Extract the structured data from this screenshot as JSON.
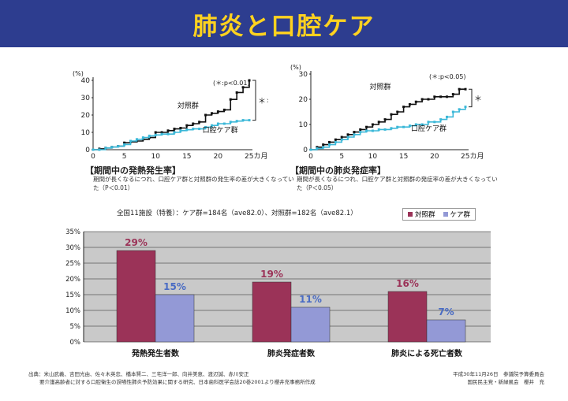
{
  "title": "肺炎と口腔ケア",
  "chart_data": [
    {
      "type": "line",
      "title": "【期間中の発熱発生率】",
      "caption": "期間が長くなるにつれ、口腔ケア群と対照群の発生率の差が大きくなっていた（P＜0.01）",
      "ylabel": "(%)",
      "ylim": [
        0,
        40
      ],
      "yticks": [
        "0",
        "10",
        "20",
        "30",
        "40"
      ],
      "xlim": [
        0,
        25
      ],
      "xticks": [
        "0",
        "5",
        "10",
        "15",
        "20",
        "25カ月"
      ],
      "significance_note": "(＊:p<0.01)",
      "significance_mark": "＊＊",
      "series": [
        {
          "name": "対照群",
          "color": "#111111",
          "points": [
            [
              0,
              0
            ],
            [
              1,
              0.5
            ],
            [
              2,
              1
            ],
            [
              3,
              1.5
            ],
            [
              4,
              2
            ],
            [
              5,
              4
            ],
            [
              6,
              4.5
            ],
            [
              7,
              5
            ],
            [
              8,
              6
            ],
            [
              9,
              7
            ],
            [
              10,
              10
            ],
            [
              11,
              10
            ],
            [
              12,
              11
            ],
            [
              13,
              12
            ],
            [
              14,
              12.5
            ],
            [
              15,
              14
            ],
            [
              16,
              15
            ],
            [
              17,
              16
            ],
            [
              18,
              20
            ],
            [
              19,
              21
            ],
            [
              20,
              22
            ],
            [
              21,
              23
            ],
            [
              22,
              29
            ],
            [
              23,
              33
            ],
            [
              24,
              36
            ],
            [
              25,
              40
            ]
          ]
        },
        {
          "name": "口腔ケア群",
          "color": "#3bb8d8",
          "points": [
            [
              0,
              0
            ],
            [
              1,
              0
            ],
            [
              2,
              1
            ],
            [
              3,
              1.5
            ],
            [
              4,
              2
            ],
            [
              5,
              3
            ],
            [
              6,
              5
            ],
            [
              7,
              6
            ],
            [
              8,
              7
            ],
            [
              9,
              8
            ],
            [
              10,
              8.5
            ],
            [
              11,
              9
            ],
            [
              12,
              9
            ],
            [
              13,
              10
            ],
            [
              14,
              11
            ],
            [
              15,
              11.5
            ],
            [
              16,
              12
            ],
            [
              17,
              12
            ],
            [
              18,
              13
            ],
            [
              19,
              14
            ],
            [
              20,
              15
            ],
            [
              21,
              15
            ],
            [
              22,
              16
            ],
            [
              23,
              16.5
            ],
            [
              24,
              17
            ],
            [
              25,
              17
            ]
          ]
        }
      ]
    },
    {
      "type": "line",
      "title": "【期間中の肺炎発症率】",
      "caption": "期間が長くなるにつれ、口腔ケア群と対照群の発症率の差が大きくなっていた（P＜0.05）",
      "ylabel": "(%)",
      "ylim": [
        0,
        30
      ],
      "yticks": [
        "0",
        "10",
        "20",
        "30"
      ],
      "xlim": [
        0,
        25
      ],
      "xticks": [
        "0",
        "5",
        "10",
        "15",
        "20",
        "25カ月"
      ],
      "significance_note": "(＊:p<0.05)",
      "significance_mark": "＊",
      "series": [
        {
          "name": "対照群",
          "color": "#111111",
          "points": [
            [
              0,
              0
            ],
            [
              1,
              1
            ],
            [
              2,
              2
            ],
            [
              3,
              3
            ],
            [
              4,
              4
            ],
            [
              5,
              5
            ],
            [
              6,
              6
            ],
            [
              7,
              7
            ],
            [
              8,
              8
            ],
            [
              9,
              9
            ],
            [
              10,
              10
            ],
            [
              11,
              11
            ],
            [
              12,
              12
            ],
            [
              13,
              14
            ],
            [
              14,
              15
            ],
            [
              15,
              17
            ],
            [
              16,
              18
            ],
            [
              17,
              19
            ],
            [
              18,
              20
            ],
            [
              19,
              20
            ],
            [
              20,
              21
            ],
            [
              21,
              21
            ],
            [
              22,
              21
            ],
            [
              23,
              22
            ],
            [
              24,
              24
            ],
            [
              25,
              24
            ]
          ]
        },
        {
          "name": "口腔ケア群",
          "color": "#3bb8d8",
          "points": [
            [
              0,
              0
            ],
            [
              1,
              0.5
            ],
            [
              2,
              1
            ],
            [
              3,
              2
            ],
            [
              4,
              3
            ],
            [
              5,
              4
            ],
            [
              6,
              5
            ],
            [
              7,
              6
            ],
            [
              8,
              7
            ],
            [
              9,
              7.5
            ],
            [
              10,
              7.5
            ],
            [
              11,
              8
            ],
            [
              12,
              8
            ],
            [
              13,
              8.5
            ],
            [
              14,
              9
            ],
            [
              15,
              9
            ],
            [
              16,
              9.5
            ],
            [
              17,
              10
            ],
            [
              18,
              10
            ],
            [
              19,
              11
            ],
            [
              20,
              11
            ],
            [
              21,
              12
            ],
            [
              22,
              13
            ],
            [
              23,
              15
            ],
            [
              24,
              16
            ],
            [
              25,
              17
            ]
          ]
        }
      ]
    },
    {
      "type": "bar",
      "header": "全国11施設（特養）：ケア群=184名（ave82.0）、対照群=182名（ave82.1）",
      "categories": [
        "発熱発生者数",
        "肺炎発症者数",
        "肺炎による死亡者数"
      ],
      "ylim": [
        0,
        35
      ],
      "yticks": [
        "0%",
        "5%",
        "10%",
        "15%",
        "20%",
        "25%",
        "30%",
        "35%"
      ],
      "series": [
        {
          "name": "対照群",
          "color": "#9b3358",
          "values": [
            29,
            19,
            16
          ],
          "labels": [
            "29%",
            "19%",
            "16%"
          ],
          "label_color": "#9b3358"
        },
        {
          "name": "ケア群",
          "color": "#9399d6",
          "values": [
            15,
            11,
            7
          ],
          "labels": [
            "15%",
            "11%",
            "7%"
          ],
          "label_color": "#4a6cc4"
        }
      ],
      "plot_bg": "#c9c9c9"
    }
  ],
  "source": {
    "line1": "出典：米山武義、吉田光由、佐々木英忠、橋本賢二、三宅洋一郎、向井美恵、渡辺誠、赤川安正",
    "line2": "要介護高齢者に対する口腔衛生の誤嚥性肺炎予防効果に関する研究、日本歯科医学会誌20巻2001より櫻井充事務所作成"
  },
  "credit": {
    "line1": "平成30年11月26日　参議院予算委員会",
    "line2": "国民民主党・新緑風会　櫻井　充"
  }
}
